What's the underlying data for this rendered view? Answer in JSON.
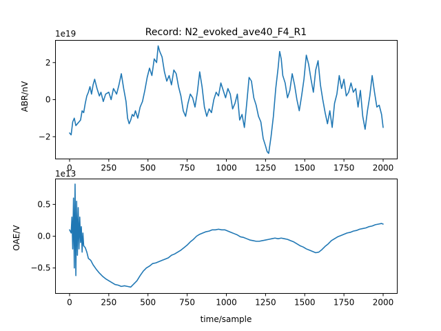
{
  "chart_data": [
    {
      "type": "line",
      "title": "Record: N2_evoked_ave40_F4_R1",
      "ylabel": "ABR/nV",
      "xlabel": "",
      "offset_label": "1e19",
      "xlim": [
        -90,
        2090
      ],
      "ylim": [
        -3.2,
        3.2
      ],
      "xticks": [
        0,
        250,
        500,
        750,
        1000,
        1250,
        1500,
        1750,
        2000
      ],
      "yticks": [
        -2,
        0,
        2
      ],
      "ytick_labels": [
        "−2",
        "0",
        "2"
      ],
      "grid": false,
      "series_color": "#1f77b4",
      "x": [
        0,
        10,
        20,
        30,
        40,
        50,
        60,
        70,
        80,
        90,
        100,
        110,
        120,
        130,
        140,
        150,
        160,
        175,
        190,
        200,
        215,
        230,
        250,
        265,
        280,
        300,
        315,
        330,
        345,
        360,
        370,
        380,
        390,
        400,
        410,
        420,
        435,
        450,
        465,
        480,
        495,
        510,
        525,
        540,
        555,
        565,
        575,
        590,
        605,
        620,
        635,
        650,
        665,
        680,
        695,
        710,
        725,
        740,
        755,
        770,
        785,
        800,
        815,
        830,
        845,
        860,
        875,
        890,
        905,
        920,
        935,
        950,
        965,
        980,
        995,
        1010,
        1025,
        1040,
        1055,
        1070,
        1085,
        1100,
        1115,
        1130,
        1145,
        1160,
        1175,
        1190,
        1205,
        1220,
        1235,
        1250,
        1260,
        1270,
        1285,
        1300,
        1315,
        1330,
        1340,
        1350,
        1360,
        1375,
        1390,
        1405,
        1420,
        1435,
        1450,
        1465,
        1480,
        1495,
        1510,
        1525,
        1540,
        1555,
        1570,
        1585,
        1600,
        1615,
        1630,
        1645,
        1660,
        1675,
        1690,
        1705,
        1720,
        1735,
        1750,
        1765,
        1780,
        1795,
        1810,
        1825,
        1840,
        1855,
        1870,
        1885,
        1900,
        1915,
        1930,
        1945,
        1960,
        1975,
        1990,
        2000
      ],
      "y": [
        -1.8,
        -1.9,
        -1.2,
        -1.0,
        -1.4,
        -1.3,
        -1.2,
        -1.1,
        -0.6,
        -0.7,
        -0.2,
        0.2,
        0.4,
        0.7,
        0.3,
        0.8,
        1.1,
        0.6,
        0.2,
        0.4,
        -0.1,
        0.3,
        0.4,
        0.0,
        0.6,
        0.3,
        0.8,
        1.4,
        0.6,
        -0.1,
        -1.0,
        -1.3,
        -1.1,
        -0.8,
        -0.9,
        -0.6,
        -1.0,
        -0.4,
        -0.1,
        0.5,
        1.2,
        1.7,
        1.3,
        2.2,
        2.0,
        2.9,
        2.6,
        2.3,
        1.5,
        1.0,
        1.3,
        0.8,
        1.6,
        1.4,
        0.7,
        0.2,
        -0.6,
        -0.9,
        -0.2,
        0.3,
        0.1,
        -0.4,
        0.4,
        1.5,
        0.7,
        -0.4,
        -0.9,
        -0.5,
        -0.7,
        0.0,
        0.4,
        0.2,
        0.9,
        0.5,
        0.1,
        0.6,
        0.3,
        -0.5,
        -0.2,
        0.3,
        -1.1,
        -0.8,
        -1.5,
        -0.2,
        1.2,
        1.0,
        0.1,
        -0.3,
        -0.9,
        -1.2,
        -2.1,
        -2.5,
        -2.8,
        -2.9,
        -2.0,
        -0.9,
        0.6,
        1.7,
        2.6,
        2.2,
        1.3,
        0.9,
        0.1,
        0.5,
        1.4,
        0.8,
        0.0,
        -0.6,
        0.2,
        1.1,
        2.4,
        1.9,
        1.1,
        0.4,
        1.6,
        2.1,
        0.8,
        0.0,
        -0.7,
        -1.3,
        -0.6,
        -1.5,
        -0.2,
        0.3,
        1.3,
        0.6,
        1.1,
        0.2,
        0.4,
        0.9,
        0.4,
        0.6,
        -0.4,
        0.5,
        -0.9,
        -1.6,
        -0.6,
        0.2,
        1.3,
        0.4,
        -0.4,
        -0.3,
        -0.8,
        -1.5
      ]
    },
    {
      "type": "line",
      "title": "",
      "ylabel": "OAE/V",
      "xlabel": "time/sample",
      "offset_label": "1e13",
      "xlim": [
        -90,
        2090
      ],
      "ylim": [
        -0.9,
        0.9
      ],
      "xticks": [
        0,
        250,
        500,
        750,
        1000,
        1250,
        1500,
        1750,
        2000
      ],
      "yticks": [
        -0.5,
        0.0,
        0.5
      ],
      "ytick_labels": [
        "−0.5",
        "0.0",
        "0.5"
      ],
      "grid": false,
      "series_color": "#1f77b4",
      "x": [
        0,
        10,
        15,
        20,
        25,
        30,
        35,
        40,
        45,
        50,
        55,
        60,
        65,
        70,
        75,
        80,
        85,
        90,
        100,
        110,
        120,
        135,
        150,
        170,
        190,
        210,
        230,
        250,
        270,
        290,
        310,
        330,
        350,
        370,
        390,
        410,
        430,
        450,
        470,
        490,
        510,
        530,
        550,
        570,
        590,
        610,
        630,
        650,
        670,
        690,
        710,
        730,
        750,
        770,
        790,
        810,
        830,
        850,
        870,
        890,
        910,
        930,
        950,
        970,
        990,
        1010,
        1030,
        1050,
        1070,
        1090,
        1110,
        1130,
        1150,
        1170,
        1190,
        1210,
        1230,
        1250,
        1270,
        1290,
        1310,
        1330,
        1350,
        1370,
        1390,
        1410,
        1430,
        1450,
        1470,
        1490,
        1510,
        1530,
        1550,
        1570,
        1590,
        1610,
        1630,
        1650,
        1670,
        1690,
        1710,
        1730,
        1750,
        1770,
        1790,
        1810,
        1830,
        1850,
        1870,
        1890,
        1910,
        1930,
        1950,
        1970,
        1990,
        2000
      ],
      "y": [
        0.1,
        0.05,
        0.3,
        -0.2,
        0.6,
        -0.5,
        0.82,
        -0.62,
        0.55,
        -0.3,
        0.45,
        -0.2,
        0.3,
        -0.1,
        0.15,
        -0.25,
        0.05,
        -0.15,
        -0.18,
        -0.25,
        -0.35,
        -0.38,
        -0.45,
        -0.52,
        -0.58,
        -0.63,
        -0.67,
        -0.7,
        -0.73,
        -0.76,
        -0.77,
        -0.79,
        -0.78,
        -0.79,
        -0.8,
        -0.75,
        -0.7,
        -0.62,
        -0.55,
        -0.5,
        -0.47,
        -0.43,
        -0.42,
        -0.4,
        -0.38,
        -0.36,
        -0.34,
        -0.3,
        -0.28,
        -0.25,
        -0.22,
        -0.18,
        -0.14,
        -0.09,
        -0.05,
        0.0,
        0.03,
        0.05,
        0.07,
        0.08,
        0.1,
        0.1,
        0.11,
        0.1,
        0.1,
        0.08,
        0.06,
        0.04,
        0.02,
        -0.01,
        -0.02,
        -0.04,
        -0.06,
        -0.07,
        -0.08,
        -0.08,
        -0.07,
        -0.06,
        -0.05,
        -0.04,
        -0.03,
        -0.04,
        -0.03,
        -0.04,
        -0.05,
        -0.07,
        -0.09,
        -0.12,
        -0.15,
        -0.17,
        -0.2,
        -0.22,
        -0.24,
        -0.26,
        -0.25,
        -0.21,
        -0.16,
        -0.12,
        -0.07,
        -0.04,
        -0.01,
        0.01,
        0.03,
        0.05,
        0.06,
        0.08,
        0.09,
        0.11,
        0.12,
        0.13,
        0.15,
        0.16,
        0.18,
        0.19,
        0.2,
        0.19
      ]
    }
  ]
}
